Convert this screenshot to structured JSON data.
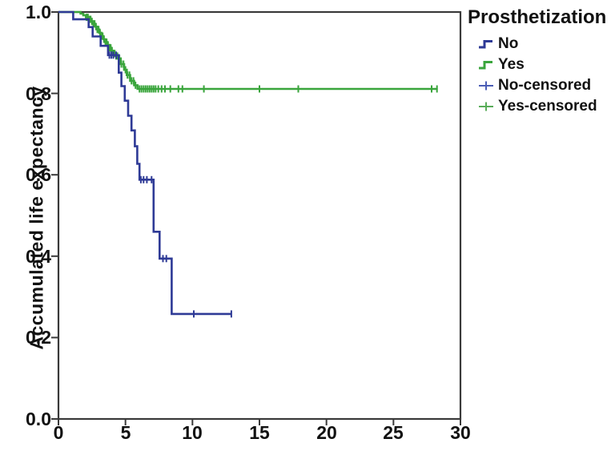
{
  "figure": {
    "bg": "#ffffff",
    "axis_color": "#3a3a3a",
    "text_color": "#111111"
  },
  "legend": {
    "title": "Prosthetization",
    "items": [
      {
        "label": "No",
        "color": "#2e3a96",
        "glyph": "step-line"
      },
      {
        "label": "Yes",
        "color": "#3aa53c",
        "glyph": "step-line"
      },
      {
        "label": "No-censored",
        "color": "#4a5cb5",
        "glyph": "plus-line"
      },
      {
        "label": "Yes-censored",
        "color": "#58ac58",
        "glyph": "plus-line"
      }
    ]
  },
  "chart_data": {
    "type": "line",
    "subtype": "kaplan-meier-step",
    "title": "",
    "xlabel": "",
    "ylabel": "Accumulated life expectancy",
    "xlim": [
      0,
      30
    ],
    "ylim": [
      0.0,
      1.0
    ],
    "grid": false,
    "legend_position": "top-right",
    "xticks": [
      0,
      5,
      10,
      15,
      20,
      25,
      30
    ],
    "yticks": [
      0.0,
      0.2,
      0.4,
      0.6,
      0.8,
      1.0
    ],
    "xtick_labels": [
      "0",
      "5",
      "10",
      "15",
      "20",
      "25",
      "30"
    ],
    "ytick_labels": [
      "0.0",
      "0.2",
      "0.4",
      "0.6",
      "0.8",
      "1.0"
    ],
    "series": [
      {
        "name": "Yes",
        "color": "#3aa53c",
        "steps": [
          [
            0,
            1.0
          ],
          [
            1.65,
            0.996
          ],
          [
            1.85,
            0.992
          ],
          [
            2.05,
            0.987
          ],
          [
            2.25,
            0.982
          ],
          [
            2.45,
            0.977
          ],
          [
            2.6,
            0.971
          ],
          [
            2.75,
            0.964
          ],
          [
            2.9,
            0.957
          ],
          [
            3.05,
            0.949
          ],
          [
            3.2,
            0.941
          ],
          [
            3.35,
            0.933
          ],
          [
            3.5,
            0.926
          ],
          [
            3.65,
            0.919
          ],
          [
            3.8,
            0.912
          ],
          [
            3.95,
            0.905
          ],
          [
            4.1,
            0.898
          ],
          [
            4.25,
            0.892
          ],
          [
            4.45,
            0.886
          ],
          [
            4.65,
            0.872
          ],
          [
            4.9,
            0.858
          ],
          [
            5.1,
            0.845
          ],
          [
            5.35,
            0.831
          ],
          [
            5.65,
            0.82
          ],
          [
            5.9,
            0.811
          ]
        ],
        "end_x": 28.3,
        "censor_x": [
          2.1,
          2.2,
          2.3,
          2.4,
          2.5,
          2.6,
          2.7,
          2.8,
          2.9,
          3.0,
          3.1,
          3.2,
          3.3,
          3.4,
          3.5,
          3.6,
          3.7,
          3.8,
          3.9,
          4.0,
          4.1,
          4.2,
          4.3,
          4.4,
          4.55,
          4.7,
          4.85,
          5.0,
          5.15,
          5.3,
          5.45,
          5.6,
          5.75,
          6.05,
          6.2,
          6.35,
          6.5,
          6.65,
          6.8,
          6.95,
          7.1,
          7.25,
          7.45,
          7.7,
          7.95,
          8.35,
          8.95,
          9.25,
          10.85,
          15.0,
          17.9,
          27.85,
          28.25
        ]
      },
      {
        "name": "No",
        "color": "#2e3a96",
        "steps": [
          [
            0,
            1.0
          ],
          [
            1.1,
            0.982
          ],
          [
            2.25,
            0.963
          ],
          [
            2.55,
            0.94
          ],
          [
            3.15,
            0.917
          ],
          [
            3.7,
            0.894
          ],
          [
            4.5,
            0.851
          ],
          [
            4.7,
            0.818
          ],
          [
            4.95,
            0.782
          ],
          [
            5.2,
            0.745
          ],
          [
            5.45,
            0.709
          ],
          [
            5.7,
            0.67
          ],
          [
            5.88,
            0.627
          ],
          [
            6.05,
            0.588
          ],
          [
            7.1,
            0.46
          ],
          [
            7.55,
            0.394
          ],
          [
            8.45,
            0.258
          ]
        ],
        "end_x": 12.9,
        "censor_x": [
          3.8,
          3.95,
          4.1,
          4.3,
          6.15,
          6.35,
          6.6,
          6.95,
          7.8,
          8.05,
          10.1,
          12.9
        ]
      }
    ]
  }
}
